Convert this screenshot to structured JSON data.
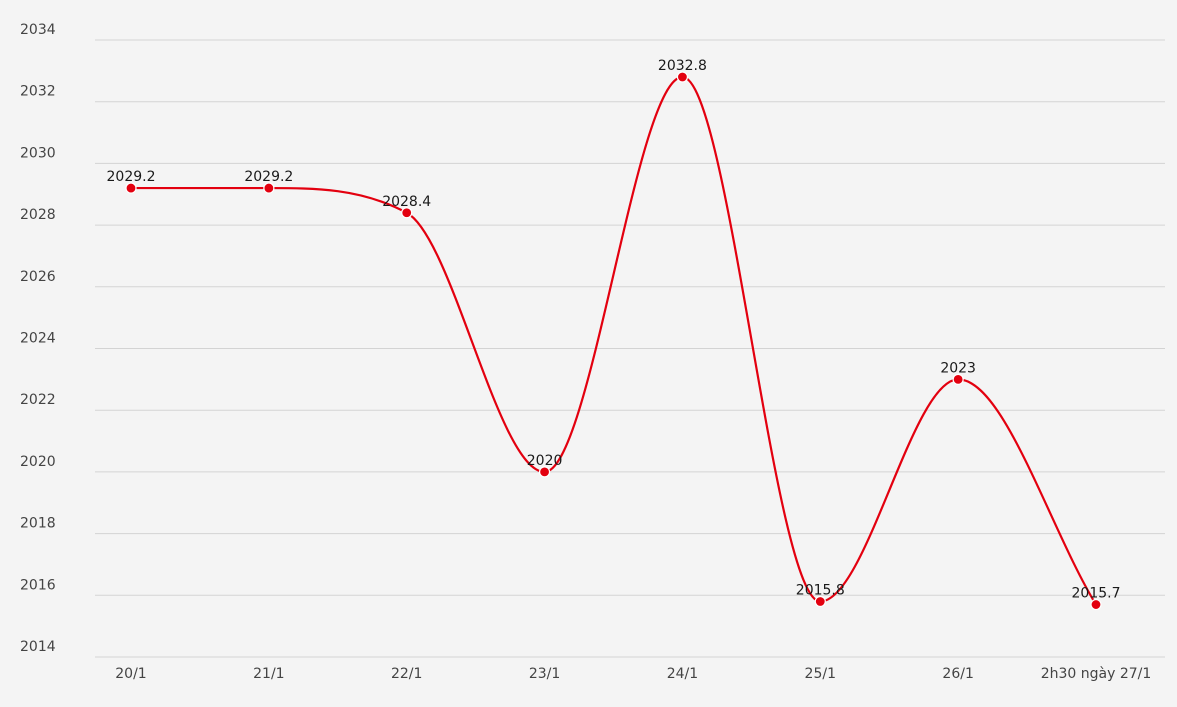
{
  "chart_data": {
    "type": "line",
    "title": "",
    "xlabel": "",
    "ylabel": "",
    "categories": [
      "20/1",
      "21/1",
      "22/1",
      "23/1",
      "24/1",
      "25/1",
      "26/1",
      "2h30 ngày 27/1"
    ],
    "series": [
      {
        "values": [
          2029.2,
          2029.2,
          2028.4,
          2020,
          2032.8,
          2015.8,
          2023,
          2015.7
        ],
        "labels": [
          "2029.2",
          "2029.2",
          "2028.4",
          "2020",
          "2032.8",
          "2015.8",
          "2023",
          "2015.7"
        ],
        "color": "#e3000f",
        "smooth": true
      }
    ],
    "ylim": [
      2014,
      2034
    ],
    "yticks": [
      2014,
      2016,
      2018,
      2020,
      2022,
      2024,
      2026,
      2028,
      2030,
      2032,
      2034
    ],
    "grid": true,
    "legend": "none",
    "background": "#f4f4f4"
  }
}
